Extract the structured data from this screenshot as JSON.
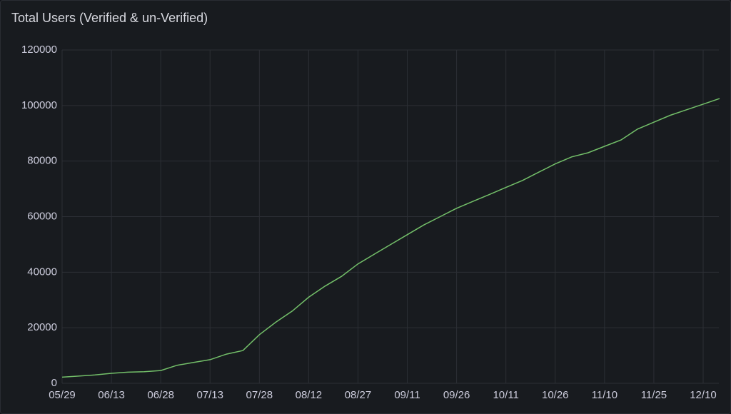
{
  "chart_data": {
    "type": "line",
    "title": "Total Users (Verified & un-Verified)",
    "x": [
      "05/29",
      null,
      null,
      "06/13",
      null,
      null,
      "06/28",
      null,
      null,
      "07/13",
      null,
      null,
      "07/28",
      null,
      null,
      "08/12",
      null,
      null,
      "08/27",
      null,
      null,
      "09/11",
      null,
      null,
      "09/26",
      null,
      null,
      "10/11",
      null,
      null,
      "10/26",
      null,
      null,
      "11/10",
      null,
      null,
      "11/25",
      null,
      null,
      "12/10",
      null
    ],
    "series": [
      {
        "name": "Total Users",
        "color": "#73bf69",
        "values": [
          2200,
          2600,
          3000,
          3600,
          4000,
          4200,
          4600,
          6500,
          7500,
          8500,
          10500,
          11800,
          17500,
          22000,
          26000,
          31000,
          35000,
          38500,
          43000,
          46500,
          50000,
          53500,
          57000,
          60000,
          63000,
          65500,
          68000,
          70500,
          73000,
          76000,
          79000,
          81500,
          83000,
          85300,
          87600,
          91500,
          94000,
          96500,
          98500,
          100500,
          102500
        ]
      }
    ],
    "ylim": [
      0,
      120000
    ],
    "yticks": [
      0,
      20000,
      40000,
      60000,
      80000,
      100000,
      120000
    ],
    "grid": true
  }
}
